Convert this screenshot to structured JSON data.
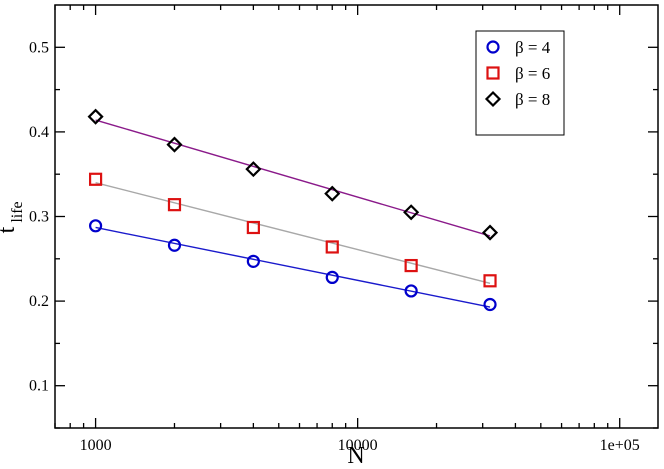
{
  "chart_data": {
    "type": "scatter",
    "xlabel": "N",
    "ylabel_main": "t",
    "ylabel_sub": "life",
    "xscale": "log",
    "xlim": [
      700,
      140000
    ],
    "ylim": [
      0.05,
      0.55
    ],
    "xticks": [
      {
        "value": 1000,
        "label": "1000"
      },
      {
        "value": 10000,
        "label": "10000"
      },
      {
        "value": 100000,
        "label": "1e+05"
      }
    ],
    "yticks": [
      {
        "value": 0.1,
        "label": "0.1"
      },
      {
        "value": 0.2,
        "label": "0.2"
      },
      {
        "value": 0.3,
        "label": "0.3"
      },
      {
        "value": 0.4,
        "label": "0.4"
      },
      {
        "value": 0.5,
        "label": "0.5"
      }
    ],
    "grid": false,
    "legend_position": "top-right",
    "series": [
      {
        "name": "β = 4",
        "marker": "circle",
        "color": "#0000cc",
        "fit_color": "#1a1acc",
        "x": [
          1000,
          2000,
          4000,
          8000,
          16000,
          32000
        ],
        "y": [
          0.289,
          0.266,
          0.247,
          0.228,
          0.212,
          0.196
        ],
        "fit_y": [
          0.287,
          0.193
        ]
      },
      {
        "name": "β = 6",
        "marker": "square",
        "color": "#dd1111",
        "fit_color": "#a8a8a8",
        "x": [
          1000,
          2000,
          4000,
          8000,
          16000,
          32000
        ],
        "y": [
          0.344,
          0.314,
          0.287,
          0.264,
          0.242,
          0.224
        ],
        "fit_y": [
          0.34,
          0.221
        ]
      },
      {
        "name": "β = 8",
        "marker": "diamond",
        "color": "#000000",
        "fit_color": "#8a1a8a",
        "x": [
          1000,
          2000,
          4000,
          8000,
          16000,
          32000
        ],
        "y": [
          0.418,
          0.385,
          0.356,
          0.327,
          0.305,
          0.281
        ],
        "fit_y": [
          0.414,
          0.277
        ]
      }
    ]
  }
}
